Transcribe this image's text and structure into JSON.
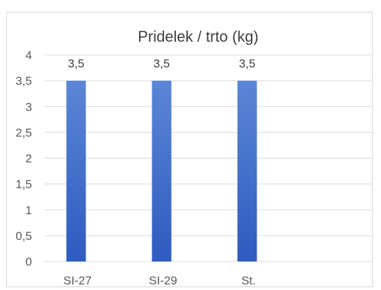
{
  "page_fragment": "",
  "chart_data": {
    "type": "bar",
    "title": "Pridelek / trto (kg)",
    "categories": [
      "SI-27",
      "SI-29",
      "St."
    ],
    "series": [
      {
        "values": [
          3.5,
          3.5,
          3.5
        ],
        "data_labels": [
          "3,5",
          "3,5",
          "3,5"
        ]
      }
    ],
    "ylim": [
      0,
      4
    ],
    "yticks": [
      0,
      0.5,
      1,
      1.5,
      2,
      2.5,
      3,
      3.5,
      4
    ],
    "ytick_labels": [
      "0",
      "0,5",
      "1",
      "1,5",
      "2",
      "2,5",
      "3",
      "3,5",
      "4"
    ],
    "xlabel": "",
    "ylabel": "",
    "grid": true,
    "legend": "none",
    "colors": {
      "bar_top": "#5b86d6",
      "bar_bottom": "#2e5bbf",
      "grid": "#d9d9d9"
    }
  }
}
